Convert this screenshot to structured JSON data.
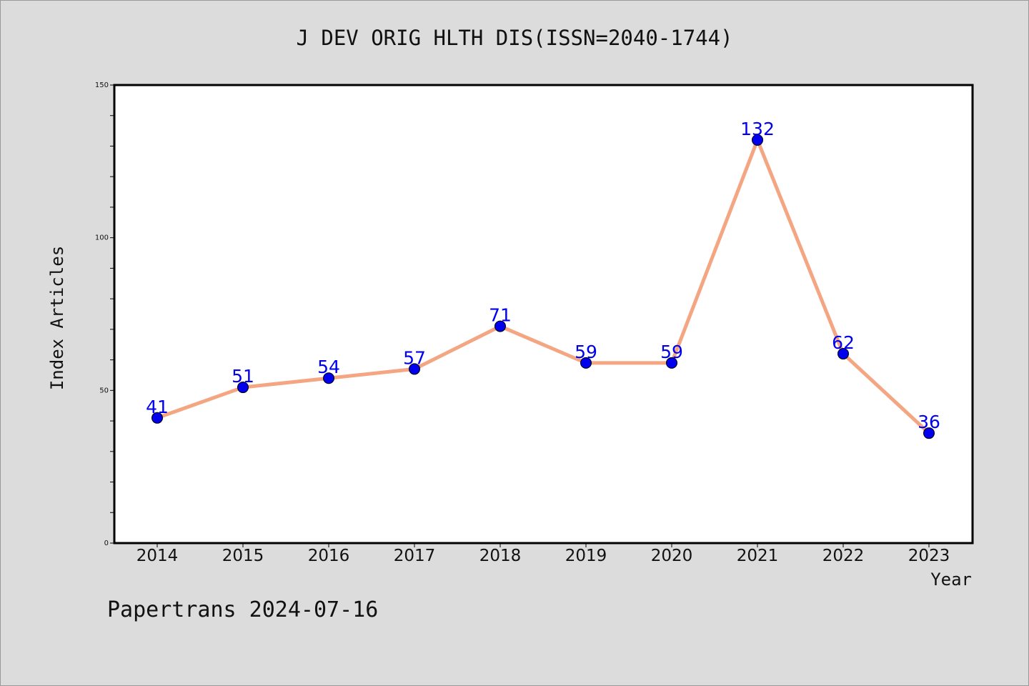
{
  "chart_data": {
    "type": "line",
    "title": "J DEV ORIG HLTH DIS(ISSN=2040-1744)",
    "xlabel": "Year",
    "ylabel": "Index Articles",
    "categories": [
      "2014",
      "2015",
      "2016",
      "2017",
      "2018",
      "2019",
      "2020",
      "2021",
      "2022",
      "2023"
    ],
    "series": [
      {
        "values": [
          41,
          51,
          54,
          57,
          71,
          59,
          59,
          132,
          62,
          36
        ]
      }
    ],
    "ylim": [
      0,
      150
    ],
    "yticks": [
      0,
      50,
      100,
      150
    ],
    "grid": false,
    "data_labels": true,
    "colors": {
      "line": "#f4a582",
      "marker": "#0000ee",
      "label": "#0000ee",
      "plot_bg": "#ffffff",
      "figure_bg": "#dcdcdc"
    }
  },
  "footer": "Papertrans 2024-07-16"
}
